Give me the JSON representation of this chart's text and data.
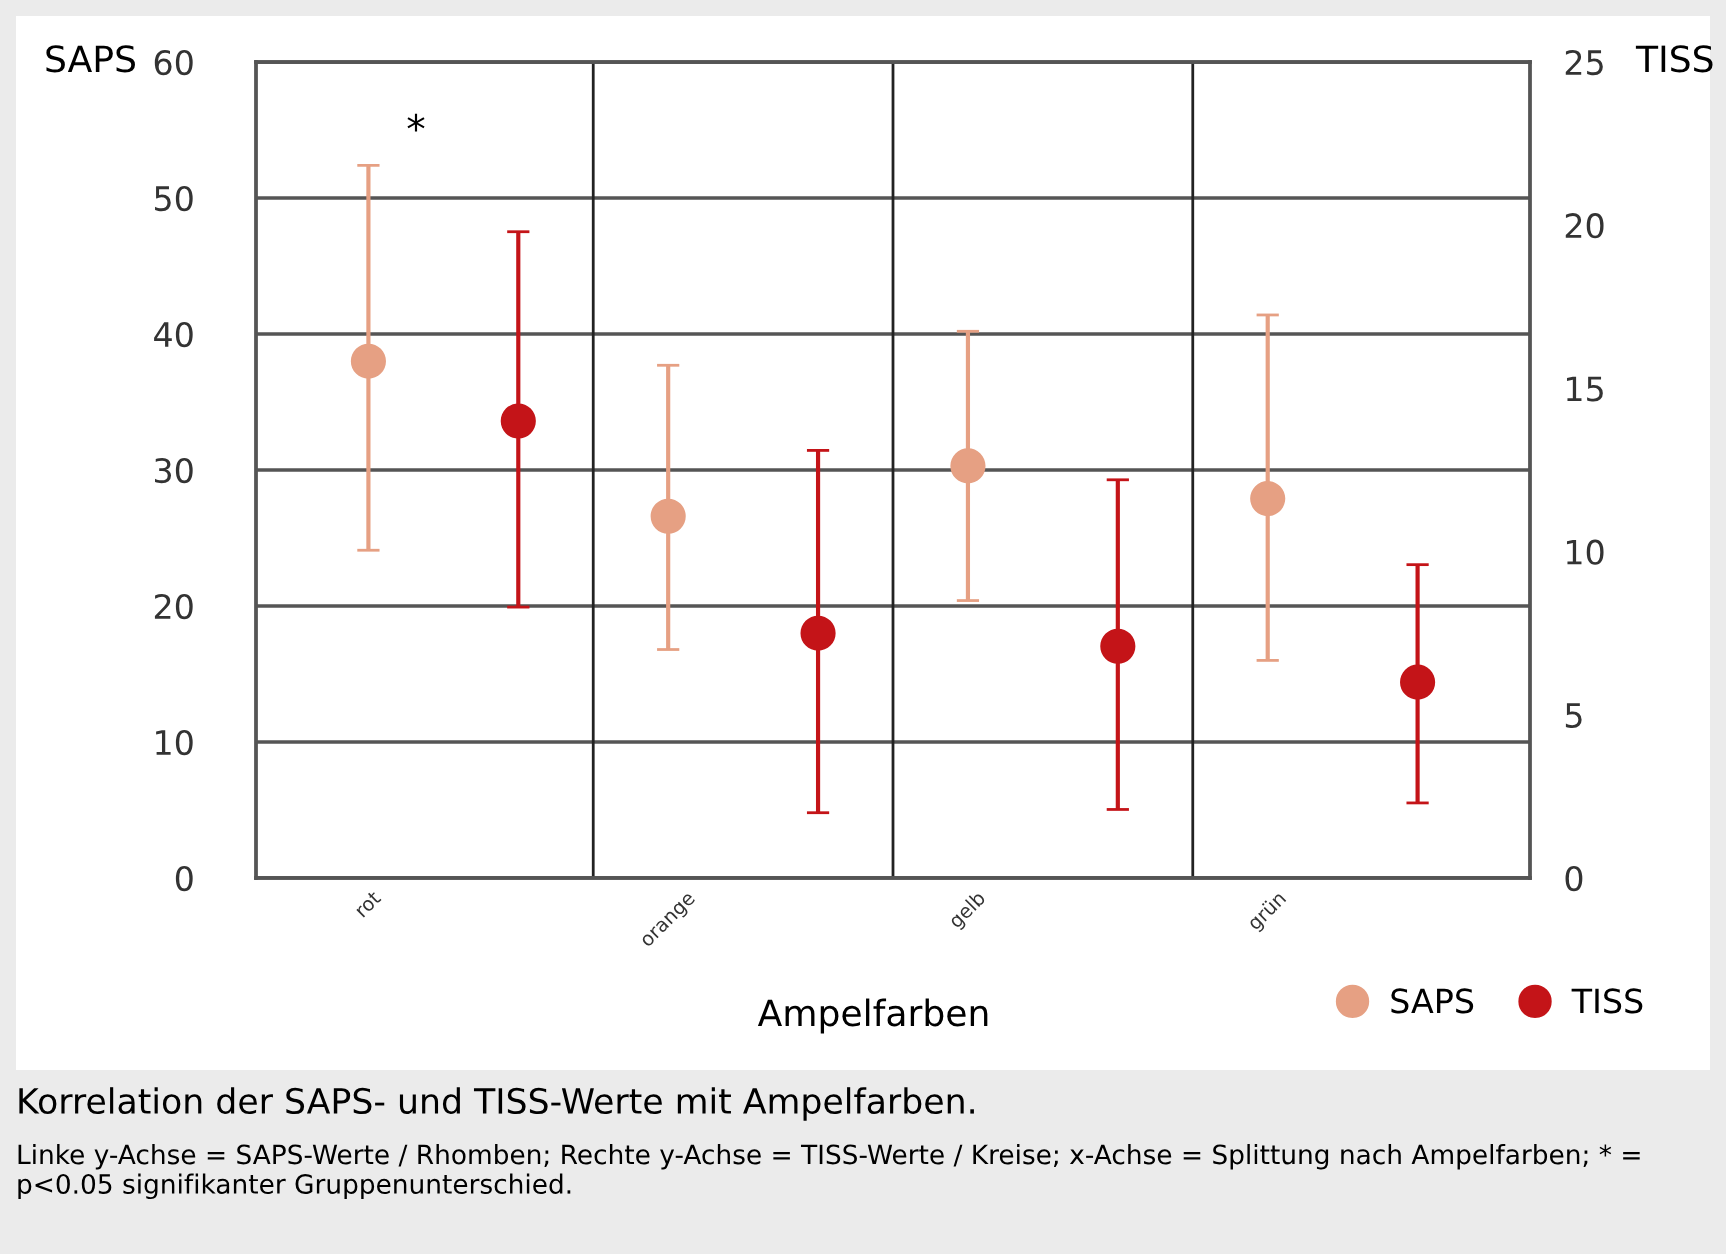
{
  "chart_data": {
    "type": "scatter",
    "title": "Korrelation der SAPS- und TISS-Werte mit Ampelfarben.",
    "categories": [
      "rot",
      null,
      "orange",
      null,
      "gelb",
      null,
      "grün",
      null
    ],
    "xlabel": "Ampelfarben",
    "ylabel": "SAPS",
    "y2label": "TISS",
    "series": [
      {
        "name": "SAPS",
        "color": "#e6a083",
        "values": [
          38.0,
          null,
          26.6,
          null,
          30.3,
          null,
          27.9,
          null
        ],
        "errors": [
          [
            24.1,
            52.4
          ],
          null,
          [
            16.8,
            37.7
          ],
          null,
          [
            20.4,
            40.2
          ],
          null,
          [
            16.0,
            41.4
          ],
          null
        ]
      },
      {
        "name": "TISS",
        "color": "#c41418",
        "axis": "y2",
        "values": [
          null,
          14.0,
          null,
          7.5,
          null,
          7.1,
          null,
          6.0
        ],
        "errors": [
          null,
          [
            8.3,
            19.8
          ],
          null,
          [
            2.0,
            13.1
          ],
          null,
          [
            2.1,
            12.2
          ],
          null,
          [
            2.3,
            9.6
          ]
        ]
      }
    ],
    "ylim": [
      0,
      60
    ],
    "yticks": [
      0,
      10,
      20,
      30,
      40,
      50,
      60
    ],
    "y2lim": [
      0,
      25
    ],
    "y2ticks": [
      0,
      5,
      10,
      15,
      20,
      25
    ],
    "grid": true,
    "legend": "bottom right",
    "marker": "circle",
    "annotations": [
      "*",
      "Linke y-Achse = SAPS-Werte / Rhomben; Rechte y-Achse = TISS-Werte / Kreise; x-Achse = Splittung nach Ampelfarben; * = p<0.05 signifikanter Gruppenunterschied."
    ]
  }
}
